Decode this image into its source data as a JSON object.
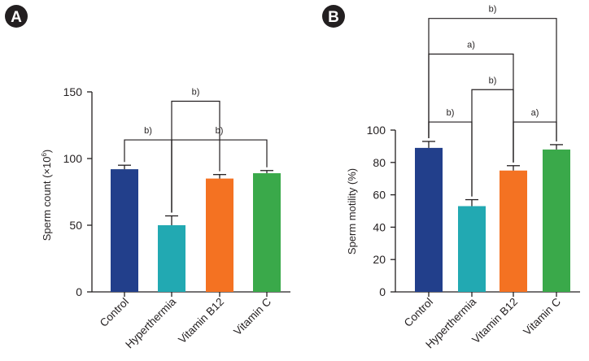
{
  "chart_data": [
    {
      "panel": "A",
      "type": "bar",
      "title": "",
      "xlabel": "",
      "ylabel_text": "Sperm count (×10",
      "ylabel_sup": "6",
      "ylabel_close": ")",
      "categories": [
        "Control",
        "Hyperthermia",
        "Vitamin B12",
        "Vitamin C"
      ],
      "values": [
        92,
        50,
        85,
        89
      ],
      "errors": [
        3,
        7,
        3,
        2
      ],
      "colors": [
        "#223f8b",
        "#22a9b2",
        "#f47222",
        "#3aa94a"
      ],
      "ylim": [
        0,
        150
      ],
      "yticks": [
        "0",
        "50",
        "100",
        "150"
      ],
      "brackets": [
        {
          "label": "b)",
          "from": 0,
          "to": 1,
          "level": 114
        },
        {
          "label": "b)",
          "from": 1,
          "to": 2,
          "level": 143
        },
        {
          "label": "b)",
          "from": 1,
          "to": 3,
          "level": 114
        }
      ]
    },
    {
      "panel": "B",
      "type": "bar",
      "title": "",
      "xlabel": "",
      "ylabel_text": "Sperm motility (%)",
      "categories": [
        "Control",
        "Hyperthermia",
        "Vitamin B12",
        "Vitamin C"
      ],
      "values": [
        89,
        53,
        75,
        88
      ],
      "errors": [
        4,
        4,
        3,
        3
      ],
      "colors": [
        "#223f8b",
        "#22a9b2",
        "#f47222",
        "#3aa94a"
      ],
      "ylim": [
        0,
        100
      ],
      "yticks": [
        "0",
        "20",
        "40",
        "60",
        "80",
        "100"
      ],
      "brackets": [
        {
          "label": "b)",
          "from": 0,
          "to": 1,
          "level": 105
        },
        {
          "label": "a)",
          "from": 2,
          "to": 3,
          "level": 105
        },
        {
          "label": "b)",
          "from": 1,
          "to": 2,
          "level": 125
        },
        {
          "label": "a)",
          "from": 0,
          "to": 2,
          "level": 147
        },
        {
          "label": "b)",
          "from": 0,
          "to": 3,
          "level": 169
        }
      ]
    }
  ]
}
